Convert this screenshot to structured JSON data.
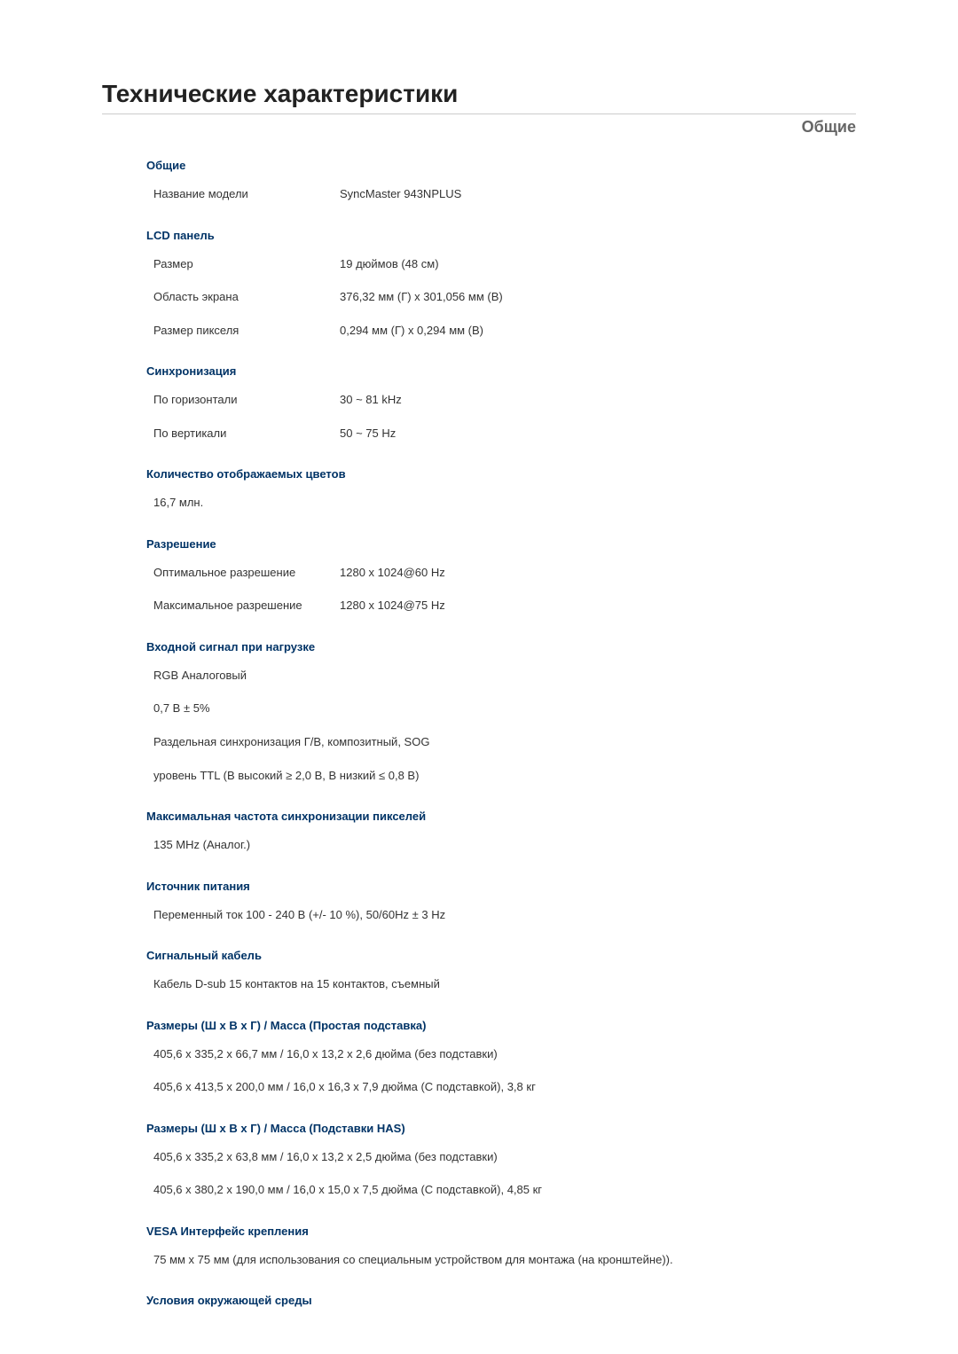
{
  "page": {
    "title": "Технические характеристики",
    "subtitle": "Общие"
  },
  "sections": {
    "general": {
      "head": "Общие",
      "model_label": "Название модели",
      "model_value": "SyncMaster 943NPLUS"
    },
    "lcd": {
      "head": "LCD панель",
      "size_label": "Размер",
      "size_value": "19 дюймов (48 см)",
      "area_label": "Область экрана",
      "area_value": "376,32 мм (Г) x 301,056 мм (В)",
      "pixel_label": "Размер пикселя",
      "pixel_value": "0,294 мм (Г) x 0,294 мм (В)"
    },
    "sync": {
      "head": "Синхронизация",
      "h_label": "По горизонтали",
      "h_value": "30 ~ 81 kHz",
      "v_label": "По вертикали",
      "v_value": "50 ~ 75 Hz"
    },
    "colors": {
      "head": "Количество отображаемых цветов",
      "value": "16,7 млн."
    },
    "resolution": {
      "head": "Разрешение",
      "opt_label": "Оптимальное разрешение",
      "opt_value": "1280 x 1024@60 Hz",
      "max_label": "Максимальное разрешение",
      "max_value": "1280 x 1024@75 Hz"
    },
    "input": {
      "head": "Входной сигнал при нагрузке",
      "line1": "RGB Аналоговый",
      "line2": "0,7 B ± 5%",
      "line3": "Раздельная синхронизация Г/В, композитный, SOG",
      "line4": "уровень TTL (В высокий ≥ 2,0 В, В низкий ≤ 0,8 В)"
    },
    "pixelclock": {
      "head": "Максимальная частота синхронизации пикселей",
      "value": "135 MHz (Аналог.)"
    },
    "power": {
      "head": "Источник питания",
      "value": "Переменный ток 100 - 240 В (+/- 10 %), 50/60Hz ± 3 Hz"
    },
    "cable": {
      "head": "Сигнальный кабель",
      "value": "Кабель D-sub 15 контактов на 15 контактов, съемный"
    },
    "dims_simple": {
      "head": "Размеры (Ш x В x Г) / Масса (Простая подставка)",
      "line1": "405,6 x 335,2 x 66,7 мм / 16,0 x 13,2 x 2,6 дюйма (без подставки)",
      "line2": "405,6 x 413,5 x 200,0 мм / 16,0 x 16,3 x 7,9 дюйма (С подставкой), 3,8 кг"
    },
    "dims_has": {
      "head": "Размеры (Ш x В x Г) / Масса (Подставки HAS)",
      "line1": "405,6 x 335,2 x 63,8 мм / 16,0 x 13,2 x 2,5 дюйма (без подставки)",
      "line2": "405,6 x 380,2 x 190,0 мм / 16,0 x 15,0 x 7,5 дюйма (С подставкой), 4,85 кг"
    },
    "vesa": {
      "head": "VESA Интерфейс крепления",
      "value": "75 мм x 75 мм (для использования со специальным устройством для монтажа (на кронштейне))."
    },
    "env": {
      "head": "Условия окружающей среды"
    }
  },
  "colors": {
    "heading": "#003366",
    "text": "#333333",
    "title": "#222222",
    "subtitle": "#666666",
    "rule": "#cccccc",
    "bg": "#ffffff"
  }
}
